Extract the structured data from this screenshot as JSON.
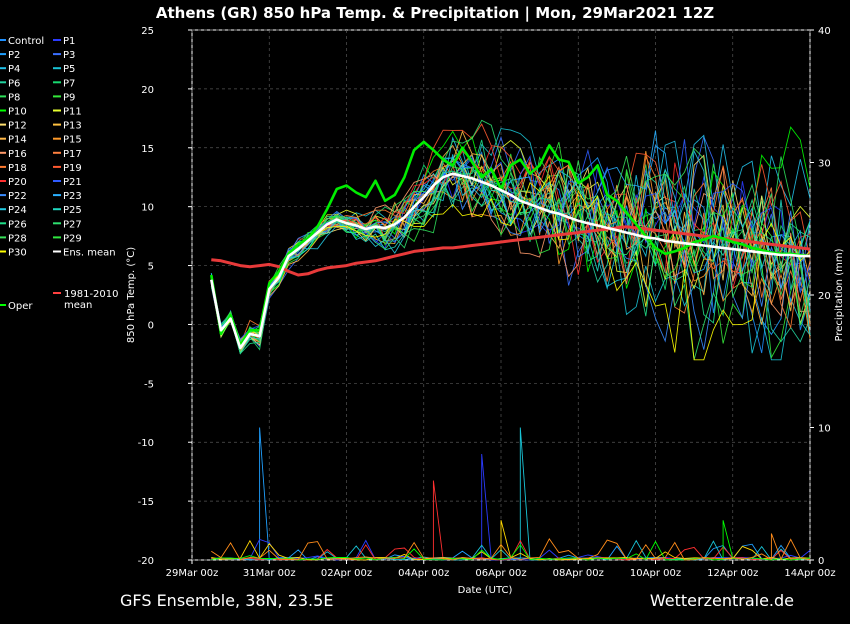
{
  "title": "Athens  (GR)  850 hPa Temp. & Precipitation | Mon, 29Mar2021 12Z",
  "footer_left": "GFS Ensemble, 38N, 23.5E",
  "footer_right": "Wetterzentrale.de",
  "chart_data": {
    "type": "line",
    "xlabel": "Date (UTC)",
    "ylabel": "850 hPa Temp. (°C)",
    "y2label": "Precipitation (mm)",
    "xlim": [
      0,
      384
    ],
    "ylim": [
      -20,
      25
    ],
    "y2lim": [
      0,
      40
    ],
    "grid": true,
    "x_ticks": [
      {
        "h": 0,
        "label": "29Mar 00z"
      },
      {
        "h": 48,
        "label": "31Mar 00z"
      },
      {
        "h": 96,
        "label": "02Apr 00z"
      },
      {
        "h": 144,
        "label": "04Apr 00z"
      },
      {
        "h": 192,
        "label": "06Apr 00z"
      },
      {
        "h": 240,
        "label": "08Apr 00z"
      },
      {
        "h": 288,
        "label": "10Apr 00z"
      },
      {
        "h": 336,
        "label": "12Apr 00z"
      },
      {
        "h": 384,
        "label": "14Apr 00z"
      }
    ],
    "y_ticks": [
      "25",
      "20",
      "15",
      "10",
      "5",
      "0",
      "-5",
      "-10",
      "-15",
      "-20"
    ],
    "y2_ticks": [
      "40",
      "30",
      "20",
      "10",
      "0"
    ],
    "x_hours": [
      12,
      18,
      24,
      30,
      36,
      42,
      48,
      54,
      60,
      66,
      72,
      78,
      84,
      90,
      96,
      102,
      108,
      114,
      120,
      126,
      132,
      138,
      144,
      150,
      156,
      162,
      168,
      174,
      180,
      186,
      192,
      198,
      204,
      210,
      216,
      222,
      228,
      234,
      240,
      246,
      252,
      258,
      264,
      270,
      276,
      282,
      288,
      294,
      300,
      306,
      312,
      318,
      324,
      330,
      336,
      342,
      348,
      354,
      360,
      366,
      372,
      378,
      384
    ],
    "mean": [
      3.8,
      -0.5,
      0.5,
      -2.0,
      -0.8,
      -1.0,
      3.0,
      4.0,
      5.8,
      6.4,
      7.1,
      7.8,
      8.5,
      8.9,
      8.6,
      8.4,
      8.1,
      8.3,
      8.2,
      8.5,
      9.1,
      10.0,
      10.8,
      11.8,
      12.5,
      12.8,
      12.6,
      12.4,
      12.1,
      11.8,
      11.4,
      11.0,
      10.5,
      10.2,
      9.9,
      9.6,
      9.4,
      9.1,
      8.8,
      8.6,
      8.4,
      8.2,
      8.0,
      7.8,
      7.6,
      7.4,
      7.3,
      7.1,
      7.0,
      6.9,
      6.8,
      6.7,
      6.6,
      6.5,
      6.4,
      6.3,
      6.2,
      6.1,
      6.0,
      5.9,
      5.9,
      5.8,
      5.8
    ],
    "climate": [
      5.5,
      5.4,
      5.2,
      5.0,
      4.9,
      5.0,
      5.1,
      4.9,
      4.5,
      4.2,
      4.3,
      4.6,
      4.8,
      4.9,
      5.0,
      5.2,
      5.3,
      5.4,
      5.6,
      5.8,
      6.0,
      6.2,
      6.3,
      6.4,
      6.5,
      6.5,
      6.6,
      6.7,
      6.8,
      6.9,
      7.0,
      7.1,
      7.2,
      7.3,
      7.4,
      7.5,
      7.6,
      7.7,
      7.8,
      7.9,
      8.0,
      8.1,
      8.2,
      8.3,
      8.2,
      8.1,
      8.0,
      7.9,
      7.8,
      7.7,
      7.6,
      7.5,
      7.4,
      7.3,
      7.2,
      7.1,
      7.0,
      6.9,
      6.8,
      6.7,
      6.6,
      6.5,
      6.4
    ],
    "oper": [
      4.2,
      -0.8,
      0.8,
      -1.8,
      -0.5,
      -0.5,
      3.5,
      4.5,
      6.0,
      6.8,
      7.3,
      8.3,
      9.8,
      11.5,
      11.8,
      11.2,
      10.8,
      12.2,
      10.5,
      11.0,
      12.5,
      14.8,
      15.5,
      14.8,
      14.0,
      13.5,
      15.0,
      13.8,
      12.5,
      13.2,
      11.5,
      13.5,
      14.0,
      12.8,
      13.5,
      15.2,
      14.0,
      13.8,
      12.0,
      12.5,
      13.5,
      11.0,
      10.5,
      9.5,
      8.5,
      7.5,
      6.5,
      6.0,
      6.2,
      6.5,
      7.0,
      7.2,
      7.5,
      7.3,
      7.0,
      6.8,
      6.5,
      6.3,
      6.1,
      6.0,
      6.0,
      5.9,
      5.8
    ],
    "precip_series": [
      {
        "color": "#1fa0ff",
        "max": 10
      },
      {
        "color": "#2b3bff",
        "max": 8
      },
      {
        "color": "#19c4d6",
        "max": 10
      },
      {
        "color": "#ff3030",
        "max": 6
      },
      {
        "color": "#ffd700",
        "max": 3
      },
      {
        "color": "#00ff00",
        "max": 3
      },
      {
        "color": "#ff8c1a",
        "max": 2
      }
    ],
    "legend": [
      {
        "label": "Control",
        "color": "#1e90ff"
      },
      {
        "label": "P1",
        "color": "#2b3bff"
      },
      {
        "label": "P2",
        "color": "#1fa0ff"
      },
      {
        "label": "P3",
        "color": "#3a6fff"
      },
      {
        "label": "P4",
        "color": "#22c0e8"
      },
      {
        "label": "P5",
        "color": "#19c4d6"
      },
      {
        "label": "P6",
        "color": "#22d4a0"
      },
      {
        "label": "P7",
        "color": "#18d870"
      },
      {
        "label": "P8",
        "color": "#2ee05a"
      },
      {
        "label": "P9",
        "color": "#34e83a"
      },
      {
        "label": "P10",
        "color": "#00ff00"
      },
      {
        "label": "P11",
        "color": "#e8ff30"
      },
      {
        "label": "P12",
        "color": "#ffe070"
      },
      {
        "label": "P13",
        "color": "#ffc040"
      },
      {
        "label": "P14",
        "color": "#ffb848"
      },
      {
        "label": "P15",
        "color": "#ff9a2a"
      },
      {
        "label": "P16",
        "color": "#ff9a6a"
      },
      {
        "label": "P17",
        "color": "#ff8040"
      },
      {
        "label": "P18",
        "color": "#ff7b30"
      },
      {
        "label": "P19",
        "color": "#ff5a30"
      },
      {
        "label": "P20",
        "color": "#ff3030"
      },
      {
        "label": "P21",
        "color": "#2f5cff"
      },
      {
        "label": "P22",
        "color": "#3a8cff"
      },
      {
        "label": "P23",
        "color": "#2ab0ff"
      },
      {
        "label": "P24",
        "color": "#22c8e0"
      },
      {
        "label": "P25",
        "color": "#20d8c0"
      },
      {
        "label": "P26",
        "color": "#20e08a"
      },
      {
        "label": "P27",
        "color": "#2ee070"
      },
      {
        "label": "P28",
        "color": "#3ae05a"
      },
      {
        "label": "P29",
        "color": "#30e840"
      },
      {
        "label": "P30",
        "color": "#ffff00"
      },
      {
        "label": "Ens. mean",
        "color": "#ffffff"
      },
      {
        "label": "1981-2010 mean",
        "color": "#ff4040"
      },
      {
        "label": "Oper",
        "color": "#00ff00"
      }
    ]
  }
}
